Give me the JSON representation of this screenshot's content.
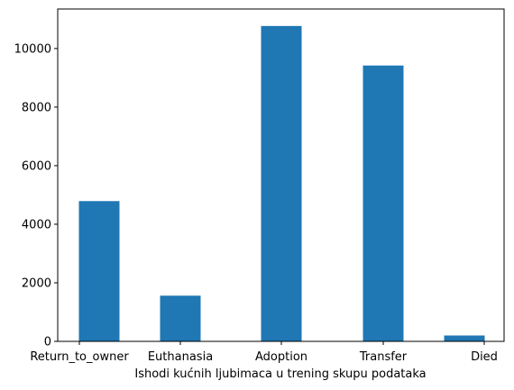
{
  "chart_data": {
    "type": "bar",
    "categories": [
      "Return_to_owner",
      "Euthanasia",
      "Adoption",
      "Transfer",
      "Died"
    ],
    "values": [
      4790,
      1560,
      10770,
      9420,
      200
    ],
    "title": "",
    "xlabel": "Ishodi kućnih ljubimaca u trening skupu podataka",
    "ylabel": "",
    "ylim": [
      0,
      11350
    ],
    "yticks": [
      0,
      2000,
      4000,
      6000,
      8000,
      10000
    ],
    "ytick_labels": [
      "0",
      "2000",
      "4000",
      "6000",
      "8000",
      "10000"
    ],
    "grid": false,
    "bar_color": "#1f77b4"
  }
}
